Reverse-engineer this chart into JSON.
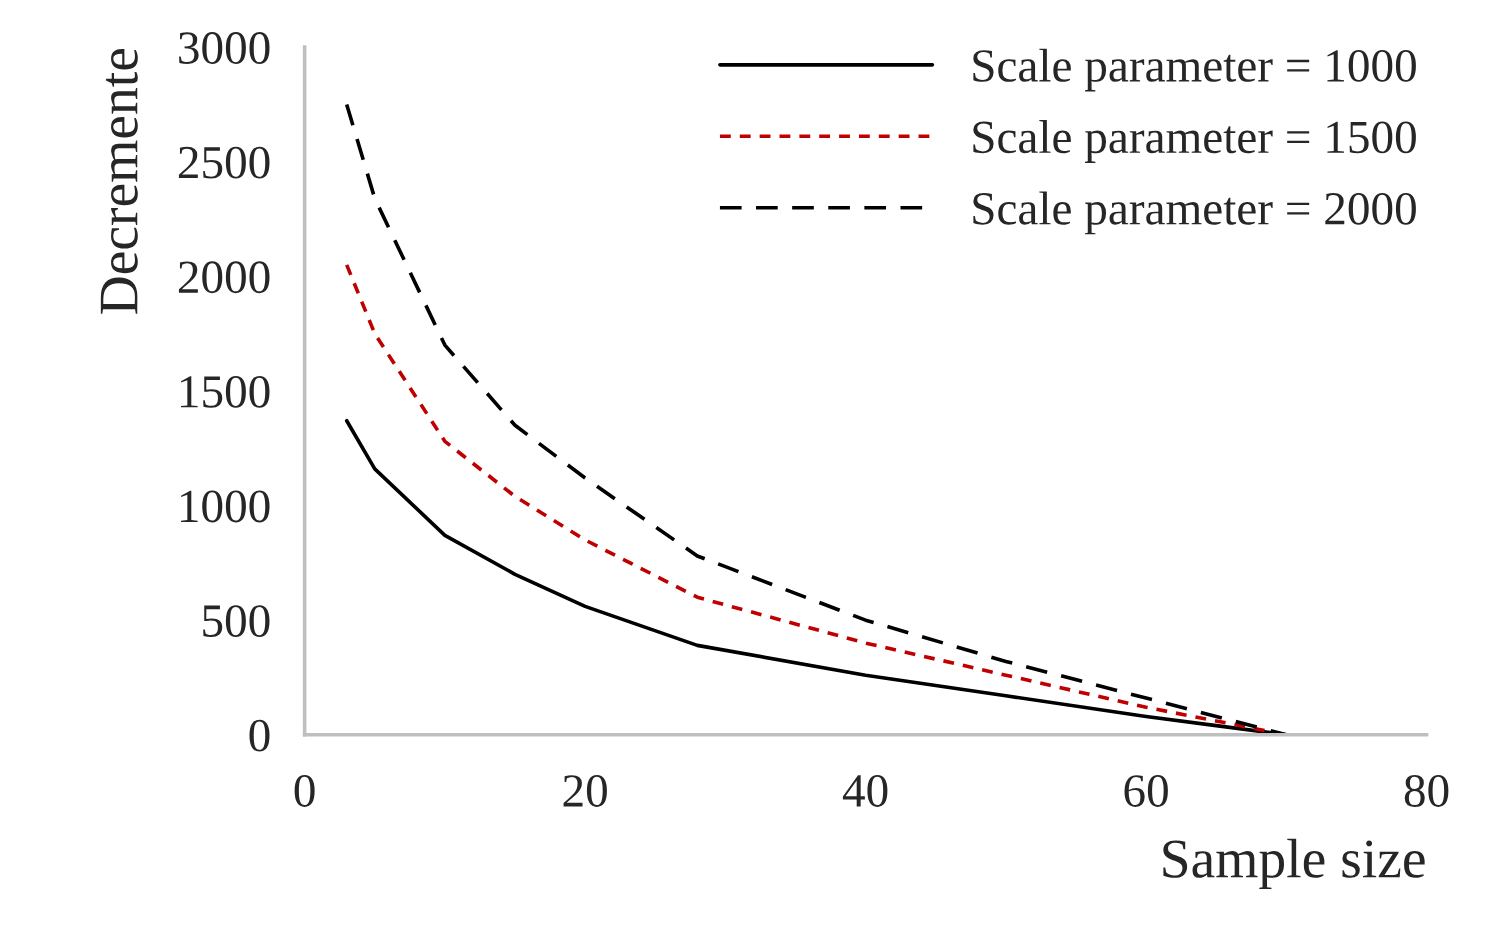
{
  "chart_data": {
    "type": "line",
    "xlabel": "Sample size",
    "ylabel": "Decremente",
    "x": [
      3,
      5,
      10,
      15,
      20,
      28,
      40,
      50,
      60,
      65,
      70
    ],
    "series": [
      {
        "name": "Scale parameter = 1000",
        "color": "#000000",
        "line_style": "solid",
        "values": [
          1370,
          1160,
          870,
          700,
          560,
          390,
          260,
          170,
          80,
          40,
          0
        ]
      },
      {
        "name": "Scale parameter = 1500",
        "color": "#c00000",
        "line_style": "dotted",
        "values": [
          2050,
          1750,
          1280,
          1040,
          850,
          600,
          400,
          260,
          120,
          60,
          0
        ]
      },
      {
        "name": "Scale parameter = 2000",
        "color": "#000000",
        "line_style": "dashed",
        "values": [
          2750,
          2340,
          1700,
          1350,
          1120,
          780,
          500,
          320,
          160,
          80,
          0
        ]
      }
    ],
    "xlim": [
      0,
      80
    ],
    "xticks": [
      0,
      20,
      40,
      60,
      80
    ],
    "ylim": [
      0,
      3000
    ],
    "yticks": [
      0,
      500,
      1000,
      1500,
      2000,
      2500,
      3000
    ],
    "grid": false,
    "legend": "top right",
    "marker": "none"
  }
}
